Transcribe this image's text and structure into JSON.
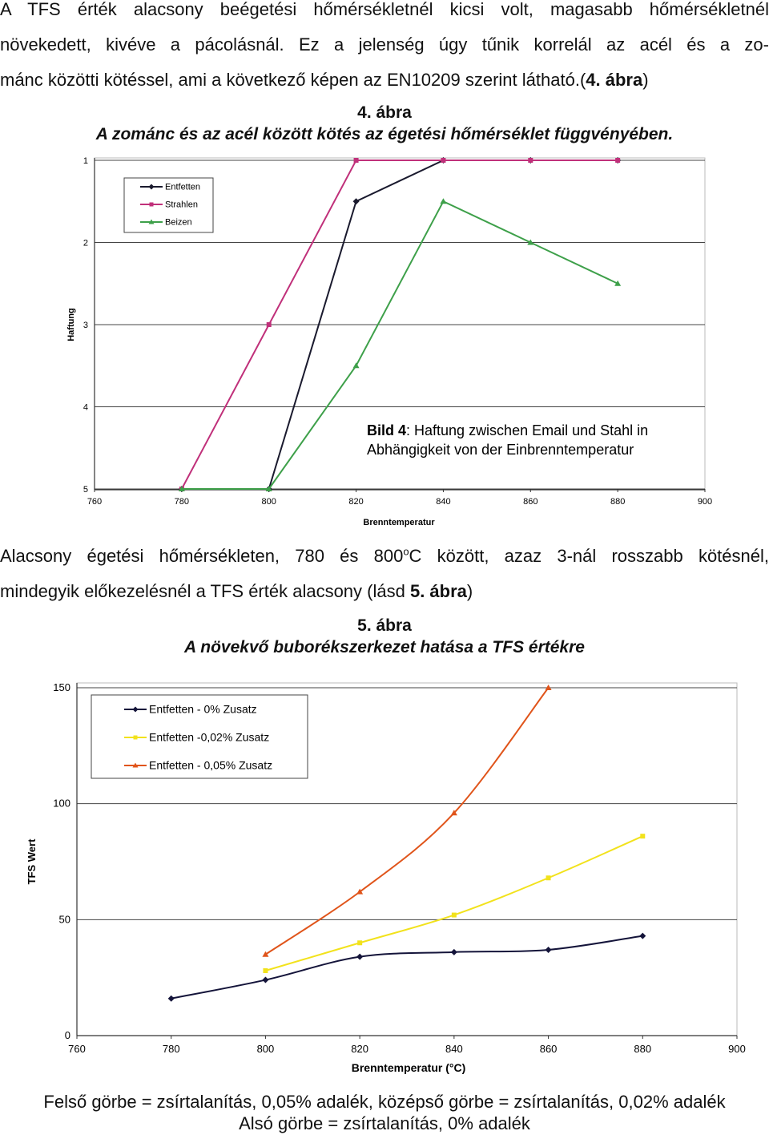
{
  "intro_paragraph": {
    "lines": [
      "A TFS érték alacsony beégetési hőmérsékletnél kicsi volt, magasabb hőmérsékletnél",
      "növekedett, kivéve a pácolásnál. Ez a jelenség úgy tűnik korrelál az acél és a zo-"
    ],
    "last_line_prefix": "mánc közötti kötéssel, ami a következő képen az EN10209 szerint látható.(",
    "last_line_ref": "4. ábra",
    "last_line_suffix": ")"
  },
  "figure4": {
    "number": "4. ábra",
    "title": "A zománc és az acél között kötés az égetési hőmérséklet függvényében.",
    "overlay_caption_bold": "Bild 4",
    "overlay_caption_line1_rest": ": Haftung zwischen Email und Stahl in",
    "overlay_caption_line2": "Abhängigkeit von der Einbrenntemperatur",
    "chart_data": {
      "type": "line",
      "xlabel": "Brenntemperatur",
      "ylabel": "Haftung",
      "x_ticks": [
        "760",
        "780",
        "800",
        "820",
        "840",
        "860",
        "880",
        "900"
      ],
      "y_ticks": [
        "1",
        "2",
        "3",
        "4",
        "5"
      ],
      "xlim": [
        760,
        900
      ],
      "ylim": [
        1,
        5
      ],
      "y_inverted": true,
      "grid": "horizontal",
      "legend_position": "top-left",
      "series": [
        {
          "name": "Entfetten",
          "color": "#1a1a2e",
          "marker": "diamond",
          "x": [
            780,
            800,
            820,
            840,
            860,
            880
          ],
          "y": [
            5,
            5,
            1.5,
            1,
            1,
            1
          ]
        },
        {
          "name": "Strahlen",
          "color": "#c0307a",
          "marker": "square",
          "x": [
            780,
            800,
            820,
            840,
            860,
            880
          ],
          "y": [
            5,
            3,
            1,
            1,
            1,
            1
          ]
        },
        {
          "name": "Beizen",
          "color": "#3ea04a",
          "marker": "triangle",
          "x": [
            780,
            800,
            820,
            840,
            860,
            880
          ],
          "y": [
            5,
            5,
            3.5,
            1.5,
            2,
            2.5
          ]
        }
      ]
    }
  },
  "middle_paragraph": {
    "line1_before_sup": "Alacsony égetési hőmérsékleten, 780 és 800",
    "line1_sup": "o",
    "line1_after_sup": "C között, azaz 3-nál rosszabb kötésnél,",
    "line2_prefix": "mindegyik előkezelésnél a TFS érték alacsony (lásd ",
    "line2_ref": "5. ábra",
    "line2_suffix": ")"
  },
  "figure5": {
    "number": "5. ábra",
    "title": "A növekvő buborékszerkezet hatása a TFS értékre",
    "chart_data": {
      "type": "line",
      "xlabel": "Brenntemperatur (°C)",
      "ylabel": "TFS Wert",
      "x_ticks": [
        "760",
        "780",
        "800",
        "820",
        "840",
        "860",
        "880",
        "900"
      ],
      "y_ticks": [
        "0",
        "50",
        "100",
        "150"
      ],
      "xlim": [
        760,
        900
      ],
      "ylim": [
        0,
        150
      ],
      "grid": "horizontal",
      "legend_position": "top-left",
      "series": [
        {
          "name": "Entfetten - 0% Zusatz",
          "color": "#14143a",
          "marker": "diamond",
          "x": [
            780,
            800,
            820,
            840,
            860,
            880
          ],
          "y": [
            16,
            24,
            34,
            36,
            37,
            43
          ]
        },
        {
          "name": "Entfetten -0,02% Zusatz",
          "color": "#f2e21c",
          "marker": "square",
          "x": [
            800,
            820,
            840,
            860,
            880
          ],
          "y": [
            28,
            40,
            52,
            68,
            86
          ]
        },
        {
          "name": "Entfetten - 0,05% Zusatz",
          "color": "#e0541a",
          "marker": "triangle",
          "x": [
            800,
            820,
            840,
            860
          ],
          "y": [
            35,
            62,
            96,
            150
          ]
        }
      ]
    }
  },
  "footnote": {
    "line1": "Felső görbe = zsírtalanítás, 0,05% adalék, középső görbe = zsírtalanítás, 0,02% adalék",
    "line2": "Alsó görbe = zsírtalanítás, 0% adalék"
  }
}
